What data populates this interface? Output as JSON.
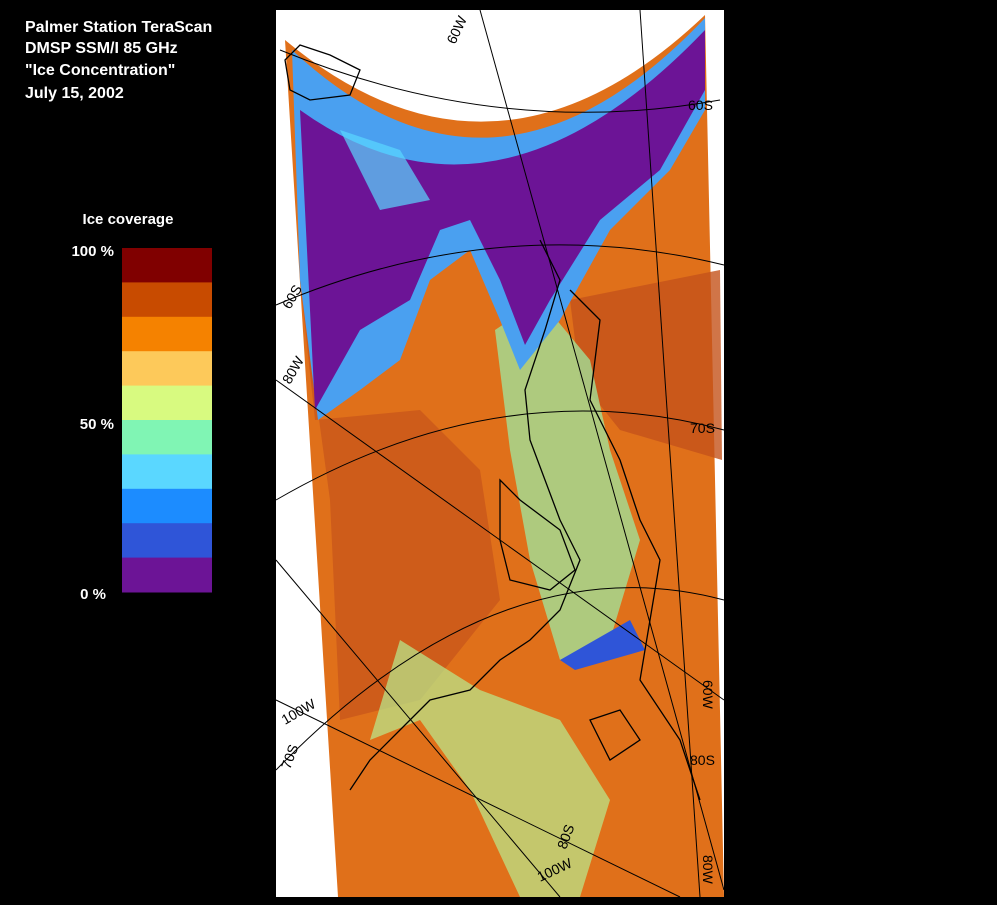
{
  "header": {
    "lines": [
      "Palmer Station TeraScan",
      "DMSP SSM/I 85 GHz",
      "\"Ice Concentration\"",
      "July 15, 2002"
    ]
  },
  "legend": {
    "title": "Ice coverage",
    "labels": [
      "100 %",
      "50 %",
      "0 %"
    ],
    "colors": [
      "#800000",
      "#c84b00",
      "#f58200",
      "#fdc95a",
      "#d8fa80",
      "#80f5b4",
      "#5ad7ff",
      "#1c8cff",
      "#2f55d8",
      "#6c1496"
    ]
  },
  "map": {
    "grid_labels": [
      "60W",
      "60S",
      "60S",
      "80W",
      "70S",
      "100W",
      "70S",
      "60W",
      "80S",
      "80S",
      "100W",
      "80W"
    ]
  }
}
